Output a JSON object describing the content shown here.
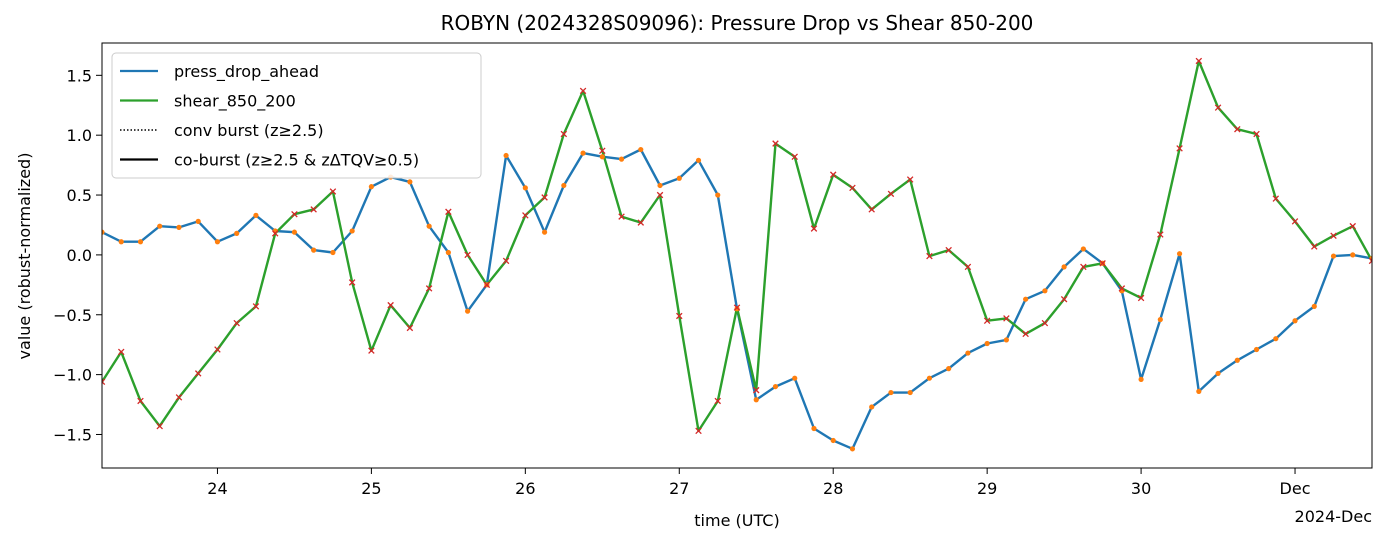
{
  "chart_data": {
    "type": "line",
    "title": "ROBYN (2024328S09096): Pressure Drop vs Shear 850-200",
    "xlabel": "time (UTC)",
    "ylabel": "value (robust-normalized)",
    "x_start": "2024-11-23T06:00",
    "x_step_hours": 3,
    "xlim": [
      "2024-11-23T06:00",
      "2024-12-01T12:00"
    ],
    "ylim": [
      -1.78,
      1.77
    ],
    "x_tick_labels": [
      "24",
      "25",
      "26",
      "27",
      "28",
      "29",
      "30",
      "Dec"
    ],
    "x_offset_label": "2024-Dec",
    "y_tick_labels": [
      "−1.5",
      "−1.0",
      "−0.5",
      "0.0",
      "0.5",
      "1.0",
      "1.5"
    ],
    "grid": false,
    "legend_position": "upper-left",
    "legend": [
      {
        "label": "press_drop_ahead",
        "style": "solid",
        "color": "#1f77b4"
      },
      {
        "label": "shear_850_200",
        "style": "solid",
        "color": "#2ca02c"
      },
      {
        "label": "conv burst (z≥2.5)",
        "style": "dotted",
        "color": "#000000"
      },
      {
        "label": "co-burst (z≥2.5 & zΔTQV≥0.5)",
        "style": "solid",
        "color": "#000000"
      }
    ],
    "series": [
      {
        "name": "press_drop_ahead",
        "color": "#1f77b4",
        "marker": "dot",
        "marker_color": "#ff7f0e",
        "values": [
          0.19,
          0.11,
          0.11,
          0.24,
          0.23,
          0.28,
          0.11,
          0.18,
          0.33,
          0.2,
          0.19,
          0.04,
          0.02,
          0.2,
          0.57,
          0.65,
          0.61,
          0.24,
          0.02,
          -0.47,
          -0.25,
          0.83,
          0.56,
          0.19,
          0.58,
          0.85,
          0.82,
          0.8,
          0.88,
          0.58,
          0.64,
          0.79,
          0.5,
          -0.45,
          -1.21,
          -1.1,
          -1.03,
          -1.45,
          -1.55,
          -1.62,
          -1.27,
          -1.15,
          -1.15,
          -1.03,
          -0.95,
          -0.82,
          -0.74,
          -0.71,
          -0.37,
          -0.3,
          -0.1,
          0.05,
          -0.07,
          -0.3,
          -1.04,
          -0.54,
          0.01,
          -1.14,
          -0.99,
          -0.88,
          -0.79,
          -0.7,
          -0.55,
          -0.43,
          -0.01,
          0.0,
          -0.03
        ]
      },
      {
        "name": "shear_850_200",
        "color": "#2ca02c",
        "marker": "x",
        "marker_color": "#d62728",
        "values": [
          -1.06,
          -0.81,
          -1.22,
          -1.43,
          -1.19,
          -0.99,
          -0.79,
          -0.57,
          -0.43,
          0.18,
          0.34,
          0.38,
          0.53,
          -0.23,
          -0.8,
          -0.42,
          -0.61,
          -0.28,
          0.36,
          0.0,
          -0.25,
          -0.05,
          0.33,
          0.48,
          1.01,
          1.37,
          0.87,
          0.32,
          0.27,
          0.5,
          -0.51,
          -1.47,
          -1.22,
          -0.44,
          -1.13,
          0.93,
          0.82,
          0.22,
          0.67,
          0.56,
          0.38,
          0.51,
          0.63,
          -0.01,
          0.04,
          -0.1,
          -0.55,
          -0.53,
          -0.66,
          -0.57,
          -0.37,
          -0.1,
          -0.07,
          -0.28,
          -0.36,
          0.17,
          0.89,
          1.62,
          1.23,
          1.05,
          1.01,
          0.47,
          0.28,
          0.07,
          0.16,
          0.24,
          -0.05
        ]
      }
    ]
  }
}
